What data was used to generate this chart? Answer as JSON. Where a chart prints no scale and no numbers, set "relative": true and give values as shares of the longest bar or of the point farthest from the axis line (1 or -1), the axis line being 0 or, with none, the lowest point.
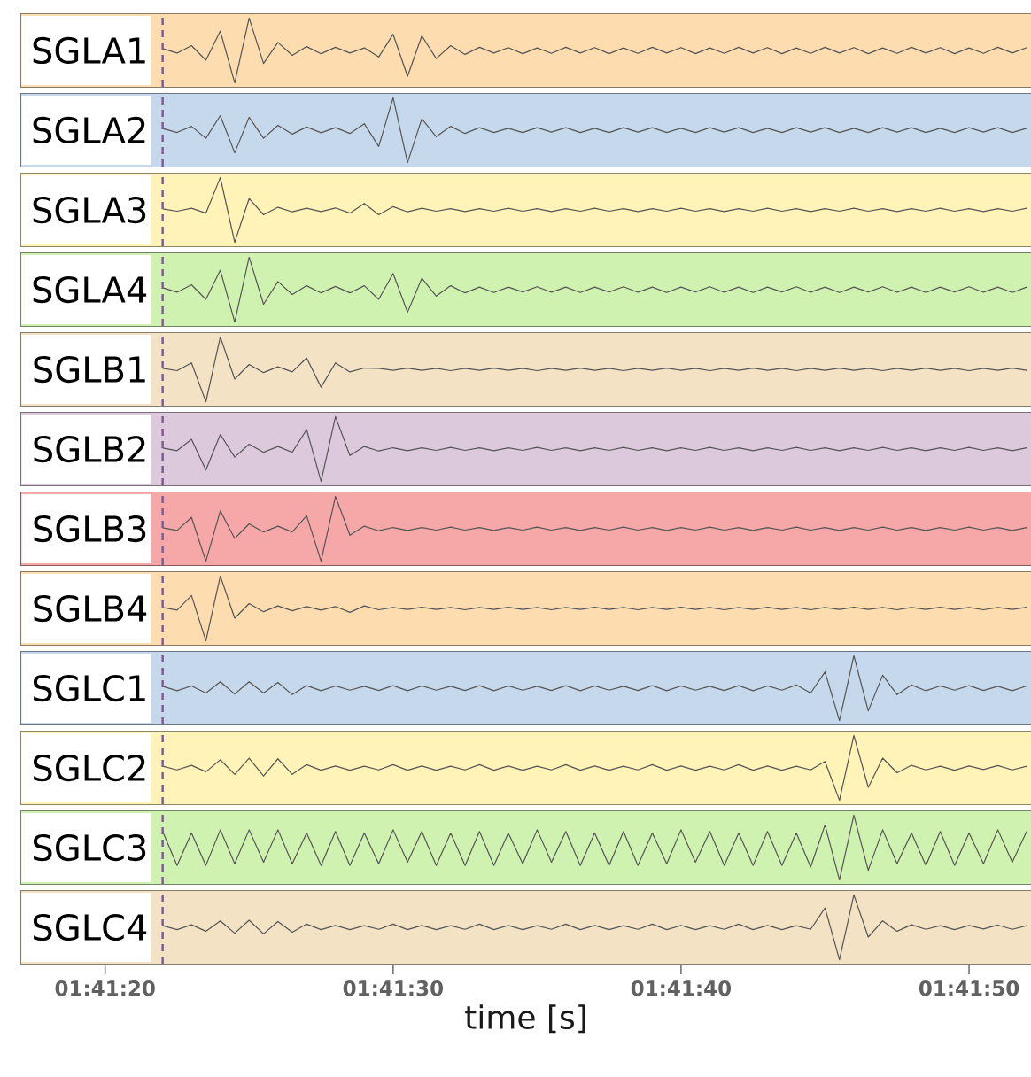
{
  "chart_data": [
    {
      "type": "line",
      "title": "SGLA1",
      "relative": true,
      "xlim": [
        1.68808,
        1.69782
      ],
      "tick_labels": false,
      "x": [
        1.689444,
        1.689583,
        1.689722,
        1.689861,
        1.69,
        1.690139,
        1.690278,
        1.690417,
        1.690556,
        1.690694,
        1.690833,
        1.690972,
        1.691111,
        1.69125,
        1.691389,
        1.691528,
        1.691667,
        1.691806,
        1.691944,
        1.692083,
        1.692222,
        1.692361,
        1.6925,
        1.692639,
        1.692778,
        1.692917,
        1.693056,
        1.693194,
        1.693333,
        1.693472,
        1.693611,
        1.69375,
        1.693889,
        1.694028,
        1.694167,
        1.694306,
        1.694444,
        1.694583,
        1.694722,
        1.694861,
        1.695,
        1.695139,
        1.695278,
        1.695417,
        1.695556,
        1.695694,
        1.695833,
        1.695972,
        1.696111,
        1.69625,
        1.696389,
        1.696528,
        1.696667,
        1.696806,
        1.696944,
        1.697083,
        1.697222,
        1.697361,
        1.6975,
        1.697639,
        1.697778
      ],
      "bands": [
        {
          "axis": "x",
          "from": 1.68808,
          "to": 1.69782,
          "color": "#fddcb0"
        }
      ],
      "ref_lines": [
        {
          "axis": "x",
          "value": 1.689444,
          "color": "#7b5a8c",
          "line_style": "dashed"
        }
      ],
      "series": [
        {
          "color": "#555555",
          "values": [
            0.53,
            0.46,
            0.575,
            0.35,
            0.8,
            0,
            1,
            0.3,
            0.625,
            0.425,
            0.56,
            0.45,
            0.55,
            0.46,
            0.54,
            0.4,
            0.75,
            0.1,
            0.725,
            0.375,
            0.575,
            0.44,
            0.55,
            0.46,
            0.545,
            0.45,
            0.54,
            0.455,
            0.55,
            0.46,
            0.545,
            0.45,
            0.54,
            0.455,
            0.55,
            0.46,
            0.545,
            0.45,
            0.54,
            0.455,
            0.55,
            0.46,
            0.545,
            0.45,
            0.54,
            0.455,
            0.55,
            0.46,
            0.545,
            0.45,
            0.54,
            0.455,
            0.55,
            0.46,
            0.545,
            0.45,
            0.54,
            0.455,
            0.55,
            0.46,
            0.545
          ]
        }
      ]
    },
    {
      "type": "line",
      "title": "SGLA2",
      "relative": true,
      "xlim": [
        1.68808,
        1.69782
      ],
      "tick_labels": false,
      "x": [
        1.689444,
        1.689583,
        1.689722,
        1.689861,
        1.69,
        1.690139,
        1.690278,
        1.690417,
        1.690556,
        1.690694,
        1.690833,
        1.690972,
        1.691111,
        1.69125,
        1.691389,
        1.691528,
        1.691667,
        1.691806,
        1.691944,
        1.692083,
        1.692222,
        1.692361,
        1.6925,
        1.692639,
        1.692778,
        1.692917,
        1.693056,
        1.693194,
        1.693333,
        1.693472,
        1.693611,
        1.69375,
        1.693889,
        1.694028,
        1.694167,
        1.694306,
        1.694444,
        1.694583,
        1.694722,
        1.694861,
        1.695,
        1.695139,
        1.695278,
        1.695417,
        1.695556,
        1.695694,
        1.695833,
        1.695972,
        1.696111,
        1.69625,
        1.696389,
        1.696528,
        1.696667,
        1.696806,
        1.696944,
        1.697083,
        1.697222,
        1.697361,
        1.6975,
        1.697639,
        1.697778
      ],
      "bands": [
        {
          "axis": "x",
          "from": 1.68808,
          "to": 1.69782,
          "color": "#c6d8ec"
        }
      ],
      "ref_lines": [
        {
          "axis": "x",
          "value": 1.689444,
          "color": "#7b5a8c",
          "line_style": "dashed"
        }
      ],
      "series": [
        {
          "color": "#555555",
          "values": [
            0.525,
            0.465,
            0.56,
            0.375,
            0.725,
            0.15,
            0.7,
            0.375,
            0.575,
            0.44,
            0.55,
            0.46,
            0.54,
            0.45,
            0.6,
            0.25,
            1,
            0,
            0.675,
            0.4,
            0.56,
            0.45,
            0.54,
            0.465,
            0.53,
            0.465,
            0.54,
            0.47,
            0.54,
            0.465,
            0.53,
            0.465,
            0.54,
            0.47,
            0.54,
            0.465,
            0.53,
            0.465,
            0.54,
            0.47,
            0.54,
            0.465,
            0.53,
            0.465,
            0.54,
            0.47,
            0.54,
            0.465,
            0.53,
            0.465,
            0.54,
            0.47,
            0.54,
            0.465,
            0.53,
            0.465,
            0.54,
            0.47,
            0.54,
            0.465,
            0.53
          ]
        }
      ]
    },
    {
      "type": "line",
      "title": "SGLA3",
      "relative": true,
      "xlim": [
        1.68808,
        1.69782
      ],
      "tick_labels": false,
      "x": [
        1.689444,
        1.689583,
        1.689722,
        1.689861,
        1.69,
        1.690139,
        1.690278,
        1.690417,
        1.690556,
        1.690694,
        1.690833,
        1.690972,
        1.691111,
        1.69125,
        1.691389,
        1.691528,
        1.691667,
        1.691806,
        1.691944,
        1.692083,
        1.692222,
        1.692361,
        1.6925,
        1.692639,
        1.692778,
        1.692917,
        1.693056,
        1.693194,
        1.693333,
        1.693472,
        1.693611,
        1.69375,
        1.693889,
        1.694028,
        1.694167,
        1.694306,
        1.694444,
        1.694583,
        1.694722,
        1.694861,
        1.695,
        1.695139,
        1.695278,
        1.695417,
        1.695556,
        1.695694,
        1.695833,
        1.695972,
        1.696111,
        1.69625,
        1.696389,
        1.696528,
        1.696667,
        1.696806,
        1.696944,
        1.697083,
        1.697222,
        1.697361,
        1.6975,
        1.697639,
        1.697778
      ],
      "bands": [
        {
          "axis": "x",
          "from": 1.68808,
          "to": 1.69782,
          "color": "#fff3b8"
        }
      ],
      "ref_lines": [
        {
          "axis": "x",
          "value": 1.689444,
          "color": "#7b5a8c",
          "line_style": "dashed"
        }
      ],
      "series": [
        {
          "color": "#555555",
          "values": [
            0.515,
            0.48,
            0.525,
            0.45,
            1,
            0,
            0.675,
            0.425,
            0.54,
            0.47,
            0.525,
            0.475,
            0.53,
            0.45,
            0.6,
            0.425,
            0.55,
            0.47,
            0.525,
            0.48,
            0.52,
            0.475,
            0.52,
            0.48,
            0.525,
            0.48,
            0.52,
            0.475,
            0.52,
            0.48,
            0.525,
            0.48,
            0.52,
            0.475,
            0.52,
            0.48,
            0.525,
            0.48,
            0.52,
            0.475,
            0.52,
            0.48,
            0.525,
            0.48,
            0.52,
            0.475,
            0.52,
            0.48,
            0.525,
            0.48,
            0.52,
            0.475,
            0.52,
            0.48,
            0.525,
            0.48,
            0.52,
            0.475,
            0.52,
            0.48,
            0.525
          ]
        }
      ]
    },
    {
      "type": "line",
      "title": "SGLA4",
      "relative": true,
      "xlim": [
        1.68808,
        1.69782
      ],
      "tick_labels": false,
      "x": [
        1.689444,
        1.689583,
        1.689722,
        1.689861,
        1.69,
        1.690139,
        1.690278,
        1.690417,
        1.690556,
        1.690694,
        1.690833,
        1.690972,
        1.691111,
        1.69125,
        1.691389,
        1.691528,
        1.691667,
        1.691806,
        1.691944,
        1.692083,
        1.692222,
        1.692361,
        1.6925,
        1.692639,
        1.692778,
        1.692917,
        1.693056,
        1.693194,
        1.693333,
        1.693472,
        1.693611,
        1.69375,
        1.693889,
        1.694028,
        1.694167,
        1.694306,
        1.694444,
        1.694583,
        1.694722,
        1.694861,
        1.695,
        1.695139,
        1.695278,
        1.695417,
        1.695556,
        1.695694,
        1.695833,
        1.695972,
        1.696111,
        1.69625,
        1.696389,
        1.696528,
        1.696667,
        1.696806,
        1.696944,
        1.697083,
        1.697222,
        1.697361,
        1.6975,
        1.697639,
        1.697778
      ],
      "bands": [
        {
          "axis": "x",
          "from": 1.68808,
          "to": 1.69782,
          "color": "#d0f2b0"
        }
      ],
      "ref_lines": [
        {
          "axis": "x",
          "value": 1.689444,
          "color": "#7b5a8c",
          "line_style": "dashed"
        }
      ],
      "series": [
        {
          "color": "#555555",
          "values": [
            0.53,
            0.46,
            0.575,
            0.35,
            0.8,
            0,
            1,
            0.275,
            0.625,
            0.425,
            0.56,
            0.45,
            0.55,
            0.45,
            0.56,
            0.35,
            0.75,
            0.15,
            0.675,
            0.4,
            0.56,
            0.45,
            0.54,
            0.455,
            0.54,
            0.465,
            0.545,
            0.46,
            0.54,
            0.455,
            0.54,
            0.465,
            0.545,
            0.46,
            0.54,
            0.455,
            0.54,
            0.465,
            0.545,
            0.46,
            0.54,
            0.455,
            0.54,
            0.465,
            0.545,
            0.46,
            0.54,
            0.455,
            0.54,
            0.465,
            0.545,
            0.46,
            0.54,
            0.455,
            0.54,
            0.465,
            0.545,
            0.46,
            0.54,
            0.455,
            0.54
          ]
        }
      ]
    },
    {
      "type": "line",
      "title": "SGLB1",
      "relative": true,
      "xlim": [
        1.68808,
        1.69782
      ],
      "tick_labels": false,
      "x": [
        1.689444,
        1.689583,
        1.689722,
        1.689861,
        1.69,
        1.690139,
        1.690278,
        1.690417,
        1.690556,
        1.690694,
        1.690833,
        1.690972,
        1.691111,
        1.69125,
        1.691389,
        1.691528,
        1.691667,
        1.691806,
        1.691944,
        1.692083,
        1.692222,
        1.692361,
        1.6925,
        1.692639,
        1.692778,
        1.692917,
        1.693056,
        1.693194,
        1.693333,
        1.693472,
        1.693611,
        1.69375,
        1.693889,
        1.694028,
        1.694167,
        1.694306,
        1.694444,
        1.694583,
        1.694722,
        1.694861,
        1.695,
        1.695139,
        1.695278,
        1.695417,
        1.695556,
        1.695694,
        1.695833,
        1.695972,
        1.696111,
        1.69625,
        1.696389,
        1.696528,
        1.696667,
        1.696806,
        1.696944,
        1.697083,
        1.697222,
        1.697361,
        1.6975,
        1.697639,
        1.697778
      ],
      "bands": [
        {
          "axis": "x",
          "from": 1.68808,
          "to": 1.69782,
          "color": "#f3e2c4"
        }
      ],
      "ref_lines": [
        {
          "axis": "x",
          "value": 1.689444,
          "color": "#7b5a8c",
          "line_style": "dashed"
        }
      ],
      "series": [
        {
          "color": "#555555",
          "values": [
            0.515,
            0.48,
            0.6,
            0,
            1,
            0.35,
            0.575,
            0.45,
            0.54,
            0.46,
            0.675,
            0.225,
            0.6,
            0.46,
            0.52,
            0.515,
            0.485,
            0.52,
            0.485,
            0.515,
            0.48,
            0.515,
            0.485,
            0.52,
            0.485,
            0.515,
            0.48,
            0.515,
            0.485,
            0.52,
            0.485,
            0.515,
            0.48,
            0.515,
            0.485,
            0.52,
            0.485,
            0.515,
            0.48,
            0.515,
            0.485,
            0.52,
            0.485,
            0.515,
            0.48,
            0.515,
            0.485,
            0.52,
            0.485,
            0.515,
            0.48,
            0.515,
            0.485,
            0.52,
            0.485,
            0.515,
            0.48,
            0.515,
            0.485,
            0.52,
            0.485
          ]
        }
      ]
    },
    {
      "type": "line",
      "title": "SGLB2",
      "relative": true,
      "xlim": [
        1.68808,
        1.69782
      ],
      "tick_labels": false,
      "x": [
        1.689444,
        1.689583,
        1.689722,
        1.689861,
        1.69,
        1.690139,
        1.690278,
        1.690417,
        1.690556,
        1.690694,
        1.690833,
        1.690972,
        1.691111,
        1.69125,
        1.691389,
        1.691528,
        1.691667,
        1.691806,
        1.691944,
        1.692083,
        1.692222,
        1.692361,
        1.6925,
        1.692639,
        1.692778,
        1.692917,
        1.693056,
        1.693194,
        1.693333,
        1.693472,
        1.693611,
        1.69375,
        1.693889,
        1.694028,
        1.694167,
        1.694306,
        1.694444,
        1.694583,
        1.694722,
        1.694861,
        1.695,
        1.695139,
        1.695278,
        1.695417,
        1.695556,
        1.695694,
        1.695833,
        1.695972,
        1.696111,
        1.69625,
        1.696389,
        1.696528,
        1.696667,
        1.696806,
        1.696944,
        1.697083,
        1.697222,
        1.697361,
        1.6975,
        1.697639,
        1.697778
      ],
      "bands": [
        {
          "axis": "x",
          "from": 1.68808,
          "to": 1.69782,
          "color": "#ddc9dc"
        }
      ],
      "ref_lines": [
        {
          "axis": "x",
          "value": 1.689444,
          "color": "#7b5a8c",
          "line_style": "dashed"
        }
      ],
      "series": [
        {
          "color": "#555555",
          "values": [
            0.515,
            0.475,
            0.65,
            0.175,
            0.725,
            0.375,
            0.575,
            0.45,
            0.54,
            0.45,
            0.8,
            0,
            1,
            0.4,
            0.54,
            0.47,
            0.52,
            0.475,
            0.52,
            0.48,
            0.525,
            0.48,
            0.52,
            0.475,
            0.52,
            0.48,
            0.525,
            0.48,
            0.52,
            0.475,
            0.52,
            0.48,
            0.525,
            0.48,
            0.52,
            0.475,
            0.52,
            0.48,
            0.525,
            0.48,
            0.52,
            0.475,
            0.52,
            0.48,
            0.525,
            0.48,
            0.52,
            0.475,
            0.52,
            0.48,
            0.525,
            0.48,
            0.52,
            0.475,
            0.52,
            0.48,
            0.525,
            0.48,
            0.52,
            0.475,
            0.52
          ]
        }
      ]
    },
    {
      "type": "line",
      "title": "SGLB3",
      "relative": true,
      "xlim": [
        1.68808,
        1.69782
      ],
      "tick_labels": false,
      "x": [
        1.689444,
        1.689583,
        1.689722,
        1.689861,
        1.69,
        1.690139,
        1.690278,
        1.690417,
        1.690556,
        1.690694,
        1.690833,
        1.690972,
        1.691111,
        1.69125,
        1.691389,
        1.691528,
        1.691667,
        1.691806,
        1.691944,
        1.692083,
        1.692222,
        1.692361,
        1.6925,
        1.692639,
        1.692778,
        1.692917,
        1.693056,
        1.693194,
        1.693333,
        1.693472,
        1.693611,
        1.69375,
        1.693889,
        1.694028,
        1.694167,
        1.694306,
        1.694444,
        1.694583,
        1.694722,
        1.694861,
        1.695,
        1.695139,
        1.695278,
        1.695417,
        1.695556,
        1.695694,
        1.695833,
        1.695972,
        1.696111,
        1.69625,
        1.696389,
        1.696528,
        1.696667,
        1.696806,
        1.696944,
        1.697083,
        1.697222,
        1.697361,
        1.6975,
        1.697639,
        1.697778
      ],
      "bands": [
        {
          "axis": "x",
          "from": 1.68808,
          "to": 1.69782,
          "color": "#f6a8a8"
        }
      ],
      "ref_lines": [
        {
          "axis": "x",
          "value": 1.689444,
          "color": "#7b5a8c",
          "line_style": "dashed"
        }
      ],
      "series": [
        {
          "color": "#555555",
          "values": [
            0.515,
            0.475,
            0.675,
            0,
            0.775,
            0.35,
            0.575,
            0.45,
            0.54,
            0.45,
            0.7,
            0,
            1,
            0.4,
            0.54,
            0.47,
            0.52,
            0.475,
            0.52,
            0.48,
            0.525,
            0.48,
            0.52,
            0.475,
            0.52,
            0.48,
            0.525,
            0.48,
            0.52,
            0.475,
            0.52,
            0.48,
            0.525,
            0.48,
            0.52,
            0.475,
            0.52,
            0.48,
            0.525,
            0.48,
            0.52,
            0.475,
            0.52,
            0.48,
            0.525,
            0.48,
            0.52,
            0.475,
            0.52,
            0.48,
            0.525,
            0.48,
            0.52,
            0.475,
            0.52,
            0.48,
            0.525,
            0.48,
            0.52,
            0.475,
            0.52
          ]
        }
      ]
    },
    {
      "type": "line",
      "title": "SGLB4",
      "relative": true,
      "xlim": [
        1.68808,
        1.69782
      ],
      "tick_labels": false,
      "x": [
        1.689444,
        1.689583,
        1.689722,
        1.689861,
        1.69,
        1.690139,
        1.690278,
        1.690417,
        1.690556,
        1.690694,
        1.690833,
        1.690972,
        1.691111,
        1.69125,
        1.691389,
        1.691528,
        1.691667,
        1.691806,
        1.691944,
        1.692083,
        1.692222,
        1.692361,
        1.6925,
        1.692639,
        1.692778,
        1.692917,
        1.693056,
        1.693194,
        1.693333,
        1.693472,
        1.693611,
        1.69375,
        1.693889,
        1.694028,
        1.694167,
        1.694306,
        1.694444,
        1.694583,
        1.694722,
        1.694861,
        1.695,
        1.695139,
        1.695278,
        1.695417,
        1.695556,
        1.695694,
        1.695833,
        1.695972,
        1.696111,
        1.69625,
        1.696389,
        1.696528,
        1.696667,
        1.696806,
        1.696944,
        1.697083,
        1.697222,
        1.697361,
        1.6975,
        1.697639,
        1.697778
      ],
      "bands": [
        {
          "axis": "x",
          "from": 1.68808,
          "to": 1.69782,
          "color": "#fddcb0"
        }
      ],
      "ref_lines": [
        {
          "axis": "x",
          "value": 1.689444,
          "color": "#7b5a8c",
          "line_style": "dashed"
        }
      ],
      "series": [
        {
          "color": "#555555",
          "values": [
            0.515,
            0.475,
            0.7,
            0,
            1,
            0.35,
            0.575,
            0.45,
            0.54,
            0.465,
            0.53,
            0.475,
            0.53,
            0.44,
            0.54,
            0.48,
            0.515,
            0.485,
            0.52,
            0.485,
            0.515,
            0.48,
            0.515,
            0.485,
            0.52,
            0.485,
            0.515,
            0.48,
            0.515,
            0.485,
            0.52,
            0.485,
            0.515,
            0.48,
            0.515,
            0.485,
            0.52,
            0.485,
            0.515,
            0.48,
            0.515,
            0.485,
            0.52,
            0.485,
            0.515,
            0.48,
            0.515,
            0.485,
            0.52,
            0.485,
            0.515,
            0.48,
            0.515,
            0.485,
            0.52,
            0.485,
            0.515,
            0.48,
            0.515,
            0.485,
            0.52
          ]
        }
      ]
    },
    {
      "type": "line",
      "title": "SGLC1",
      "relative": true,
      "xlim": [
        1.68808,
        1.69782
      ],
      "tick_labels": false,
      "x": [
        1.689444,
        1.689583,
        1.689722,
        1.689861,
        1.69,
        1.690139,
        1.690278,
        1.690417,
        1.690556,
        1.690694,
        1.690833,
        1.690972,
        1.691111,
        1.69125,
        1.691389,
        1.691528,
        1.691667,
        1.691806,
        1.691944,
        1.692083,
        1.692222,
        1.692361,
        1.6925,
        1.692639,
        1.692778,
        1.692917,
        1.693056,
        1.693194,
        1.693333,
        1.693472,
        1.693611,
        1.69375,
        1.693889,
        1.694028,
        1.694167,
        1.694306,
        1.694444,
        1.694583,
        1.694722,
        1.694861,
        1.695,
        1.695139,
        1.695278,
        1.695417,
        1.695556,
        1.695694,
        1.695833,
        1.695972,
        1.696111,
        1.69625,
        1.696389,
        1.696528,
        1.696667,
        1.696806,
        1.696944,
        1.697083,
        1.697222,
        1.697361,
        1.6975,
        1.697639,
        1.697778
      ],
      "bands": [
        {
          "axis": "x",
          "from": 1.68808,
          "to": 1.69782,
          "color": "#c6d8ec"
        }
      ],
      "ref_lines": [
        {
          "axis": "x",
          "value": 1.689444,
          "color": "#7b5a8c",
          "line_style": "dashed"
        }
      ],
      "series": [
        {
          "color": "#555555",
          "values": [
            0.53,
            0.46,
            0.535,
            0.425,
            0.6,
            0.41,
            0.6,
            0.425,
            0.59,
            0.4,
            0.54,
            0.46,
            0.535,
            0.47,
            0.53,
            0.465,
            0.54,
            0.46,
            0.535,
            0.47,
            0.53,
            0.465,
            0.54,
            0.46,
            0.535,
            0.47,
            0.53,
            0.465,
            0.54,
            0.46,
            0.535,
            0.47,
            0.53,
            0.465,
            0.54,
            0.46,
            0.535,
            0.47,
            0.53,
            0.465,
            0.54,
            0.46,
            0.535,
            0.47,
            0.55,
            0.425,
            0.75,
            0,
            1,
            0.15,
            0.7,
            0.4,
            0.55,
            0.46,
            0.535,
            0.47,
            0.54,
            0.465,
            0.53,
            0.46,
            0.535
          ]
        }
      ]
    },
    {
      "type": "line",
      "title": "SGLC2",
      "relative": true,
      "xlim": [
        1.68808,
        1.69782
      ],
      "tick_labels": false,
      "x": [
        1.689444,
        1.689583,
        1.689722,
        1.689861,
        1.69,
        1.690139,
        1.690278,
        1.690417,
        1.690556,
        1.690694,
        1.690833,
        1.690972,
        1.691111,
        1.69125,
        1.691389,
        1.691528,
        1.691667,
        1.691806,
        1.691944,
        1.692083,
        1.692222,
        1.692361,
        1.6925,
        1.692639,
        1.692778,
        1.692917,
        1.693056,
        1.693194,
        1.693333,
        1.693472,
        1.693611,
        1.69375,
        1.693889,
        1.694028,
        1.694167,
        1.694306,
        1.694444,
        1.694583,
        1.694722,
        1.694861,
        1.695,
        1.695139,
        1.695278,
        1.695417,
        1.695556,
        1.695694,
        1.695833,
        1.695972,
        1.696111,
        1.69625,
        1.696389,
        1.696528,
        1.696667,
        1.696806,
        1.696944,
        1.697083,
        1.697222,
        1.697361,
        1.6975,
        1.697639,
        1.697778
      ],
      "bands": [
        {
          "axis": "x",
          "from": 1.68808,
          "to": 1.69782,
          "color": "#fff3b8"
        }
      ],
      "ref_lines": [
        {
          "axis": "x",
          "value": 1.689444,
          "color": "#7b5a8c",
          "line_style": "dashed"
        }
      ],
      "series": [
        {
          "color": "#555555",
          "values": [
            0.525,
            0.47,
            0.54,
            0.44,
            0.625,
            0.4,
            0.65,
            0.375,
            0.64,
            0.4,
            0.55,
            0.465,
            0.53,
            0.465,
            0.525,
            0.47,
            0.55,
            0.465,
            0.53,
            0.465,
            0.525,
            0.47,
            0.55,
            0.465,
            0.53,
            0.465,
            0.525,
            0.47,
            0.55,
            0.465,
            0.53,
            0.465,
            0.525,
            0.47,
            0.55,
            0.465,
            0.53,
            0.465,
            0.525,
            0.47,
            0.55,
            0.465,
            0.53,
            0.465,
            0.525,
            0.47,
            0.6,
            0,
            1,
            0.2,
            0.65,
            0.425,
            0.54,
            0.47,
            0.525,
            0.465,
            0.53,
            0.475,
            0.535,
            0.47,
            0.525
          ]
        }
      ]
    },
    {
      "type": "line",
      "title": "SGLC3",
      "relative": true,
      "xlim": [
        1.68808,
        1.69782
      ],
      "tick_labels": false,
      "x": [
        1.689444,
        1.689583,
        1.689722,
        1.689861,
        1.69,
        1.690139,
        1.690278,
        1.690417,
        1.690556,
        1.690694,
        1.690833,
        1.690972,
        1.691111,
        1.69125,
        1.691389,
        1.691528,
        1.691667,
        1.691806,
        1.691944,
        1.692083,
        1.692222,
        1.692361,
        1.6925,
        1.692639,
        1.692778,
        1.692917,
        1.693056,
        1.693194,
        1.693333,
        1.693472,
        1.693611,
        1.69375,
        1.693889,
        1.694028,
        1.694167,
        1.694306,
        1.694444,
        1.694583,
        1.694722,
        1.694861,
        1.695,
        1.695139,
        1.695278,
        1.695417,
        1.695556,
        1.695694,
        1.695833,
        1.695972,
        1.696111,
        1.69625,
        1.696389,
        1.696528,
        1.696667,
        1.696806,
        1.696944,
        1.697083,
        1.697222,
        1.697361,
        1.6975,
        1.697639,
        1.697778
      ],
      "bands": [
        {
          "axis": "x",
          "from": 1.68808,
          "to": 1.69782,
          "color": "#d0f2b0"
        }
      ],
      "ref_lines": [
        {
          "axis": "x",
          "value": 1.689444,
          "color": "#7b5a8c",
          "line_style": "dashed"
        }
      ],
      "series": [
        {
          "color": "#555555",
          "values": [
            0.75,
            0.225,
            0.725,
            0.225,
            0.775,
            0.25,
            0.775,
            0.275,
            0.775,
            0.25,
            0.725,
            0.225,
            0.75,
            0.225,
            0.725,
            0.25,
            0.775,
            0.275,
            0.75,
            0.225,
            0.725,
            0.225,
            0.75,
            0.225,
            0.725,
            0.25,
            0.775,
            0.275,
            0.75,
            0.225,
            0.725,
            0.225,
            0.75,
            0.225,
            0.725,
            0.25,
            0.775,
            0.275,
            0.75,
            0.225,
            0.725,
            0.225,
            0.75,
            0.225,
            0.725,
            0.2,
            0.85,
            0,
            1,
            0.15,
            0.775,
            0.25,
            0.725,
            0.225,
            0.75,
            0.225,
            0.725,
            0.25,
            0.775,
            0.275,
            0.75
          ]
        }
      ]
    },
    {
      "type": "line",
      "title": "SGLC4",
      "relative": true,
      "xlim": [
        1.68808,
        1.69782
      ],
      "tick_labels": "x",
      "xlabel": "time [s]",
      "xticks": [
        {
          "value": 1.688889,
          "label": "01:41:20"
        },
        {
          "value": 1.691667,
          "label": "01:41:30"
        },
        {
          "value": 1.694444,
          "label": "01:41:40"
        },
        {
          "value": 1.697222,
          "label": "01:41:50"
        }
      ],
      "x": [
        1.689444,
        1.689583,
        1.689722,
        1.689861,
        1.69,
        1.690139,
        1.690278,
        1.690417,
        1.690556,
        1.690694,
        1.690833,
        1.690972,
        1.691111,
        1.69125,
        1.691389,
        1.691528,
        1.691667,
        1.691806,
        1.691944,
        1.692083,
        1.692222,
        1.692361,
        1.6925,
        1.692639,
        1.692778,
        1.692917,
        1.693056,
        1.693194,
        1.693333,
        1.693472,
        1.693611,
        1.69375,
        1.693889,
        1.694028,
        1.694167,
        1.694306,
        1.694444,
        1.694583,
        1.694722,
        1.694861,
        1.695,
        1.695139,
        1.695278,
        1.695417,
        1.695556,
        1.695694,
        1.695833,
        1.695972,
        1.696111,
        1.69625,
        1.696389,
        1.696528,
        1.696667,
        1.696806,
        1.696944,
        1.697083,
        1.697222,
        1.697361,
        1.6975,
        1.697639,
        1.697778
      ],
      "bands": [
        {
          "axis": "x",
          "from": 1.68808,
          "to": 1.69782,
          "color": "#f3e2c4"
        }
      ],
      "ref_lines": [
        {
          "axis": "x",
          "value": 1.689444,
          "color": "#7b5a8c",
          "line_style": "dashed"
        }
      ],
      "series": [
        {
          "color": "#555555",
          "values": [
            0.525,
            0.465,
            0.54,
            0.44,
            0.6,
            0.41,
            0.61,
            0.4,
            0.59,
            0.425,
            0.55,
            0.465,
            0.53,
            0.465,
            0.525,
            0.47,
            0.55,
            0.465,
            0.53,
            0.465,
            0.525,
            0.47,
            0.55,
            0.465,
            0.53,
            0.465,
            0.525,
            0.47,
            0.55,
            0.465,
            0.53,
            0.465,
            0.525,
            0.47,
            0.55,
            0.465,
            0.53,
            0.465,
            0.525,
            0.47,
            0.55,
            0.465,
            0.53,
            0.465,
            0.525,
            0.47,
            0.8,
            0,
            1,
            0.35,
            0.6,
            0.44,
            0.54,
            0.47,
            0.525,
            0.465,
            0.53,
            0.475,
            0.535,
            0.47,
            0.525
          ]
        }
      ]
    }
  ]
}
